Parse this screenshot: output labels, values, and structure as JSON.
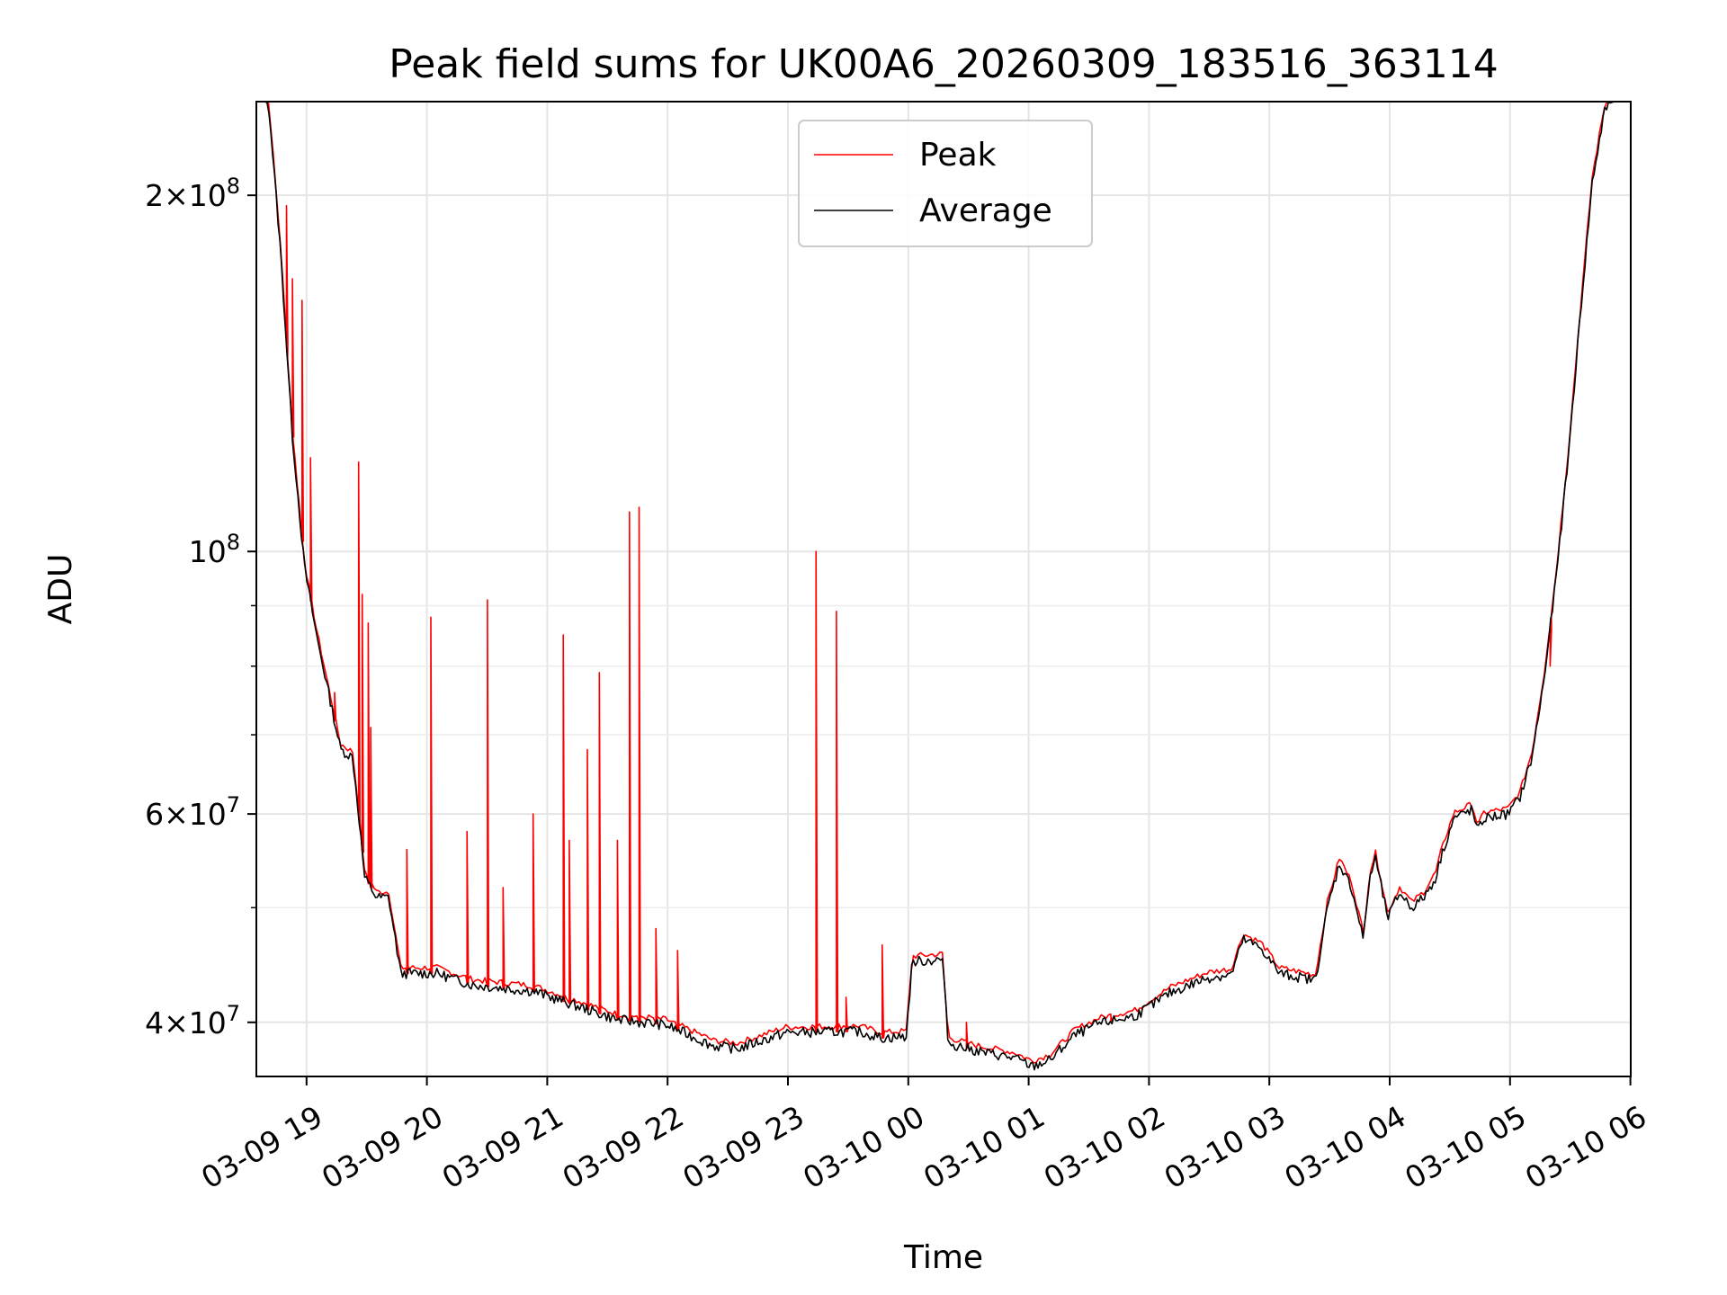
{
  "chart_data": {
    "type": "line",
    "title": "Peak field sums for UK00A6_20260309_183516_363114",
    "xlabel": "Time",
    "ylabel": "ADU",
    "y_scale": "log",
    "ylim": [
      36000000,
      240000000
    ],
    "xlim_hours_from_0309_1835": [
      0,
      11.42
    ],
    "x_ticks": [
      {
        "label": "03-09 19",
        "hour": 0.417
      },
      {
        "label": "03-09 20",
        "hour": 1.417
      },
      {
        "label": "03-09 21",
        "hour": 2.417
      },
      {
        "label": "03-09 22",
        "hour": 3.417
      },
      {
        "label": "03-09 23",
        "hour": 4.417
      },
      {
        "label": "03-10 00",
        "hour": 5.417
      },
      {
        "label": "03-10 01",
        "hour": 6.417
      },
      {
        "label": "03-10 02",
        "hour": 7.417
      },
      {
        "label": "03-10 03",
        "hour": 8.417
      },
      {
        "label": "03-10 04",
        "hour": 9.417
      },
      {
        "label": "03-10 05",
        "hour": 10.417
      },
      {
        "label": "03-10 06",
        "hour": 11.417
      }
    ],
    "y_ticks": [
      {
        "base": "4",
        "exp": "7",
        "value": 40000000
      },
      {
        "base": "6",
        "exp": "7",
        "value": 60000000
      },
      {
        "base": "10",
        "exp": "8",
        "value": 100000000,
        "plain": true
      },
      {
        "base": "2",
        "exp": "8",
        "value": 200000000
      }
    ],
    "y_minor_ticks": [
      50000000,
      70000000,
      80000000,
      90000000
    ],
    "grid": true,
    "legend": {
      "placement": "top-center",
      "entries": [
        "Peak",
        "Average"
      ]
    },
    "series": [
      {
        "name": "Average",
        "color": "#000000",
        "points": [
          [
            0.0,
            245000000
          ],
          [
            0.1,
            240000000
          ],
          [
            0.2,
            180000000
          ],
          [
            0.3,
            125000000
          ],
          [
            0.4,
            97000000
          ],
          [
            0.5,
            85000000
          ],
          [
            0.6,
            76000000
          ],
          [
            0.7,
            68000000
          ],
          [
            0.8,
            67000000
          ],
          [
            0.85,
            60000000
          ],
          [
            0.9,
            53000000
          ],
          [
            1.0,
            51000000
          ],
          [
            1.1,
            51000000
          ],
          [
            1.2,
            44000000
          ],
          [
            1.5,
            44000000
          ],
          [
            1.8,
            43000000
          ],
          [
            2.0,
            42800000
          ],
          [
            2.3,
            42500000
          ],
          [
            2.6,
            41500000
          ],
          [
            3.0,
            40200000
          ],
          [
            3.4,
            39800000
          ],
          [
            3.6,
            39000000
          ],
          [
            3.8,
            38200000
          ],
          [
            4.0,
            38000000
          ],
          [
            4.4,
            39200000
          ],
          [
            5.0,
            39300000
          ],
          [
            5.2,
            38800000
          ],
          [
            5.4,
            38900000
          ],
          [
            5.45,
            45000000
          ],
          [
            5.7,
            45200000
          ],
          [
            5.75,
            38400000
          ],
          [
            6.0,
            37800000
          ],
          [
            6.3,
            37300000
          ],
          [
            6.45,
            36700000
          ],
          [
            6.6,
            37200000
          ],
          [
            6.8,
            39000000
          ],
          [
            7.0,
            39900000
          ],
          [
            7.3,
            40500000
          ],
          [
            7.6,
            42400000
          ],
          [
            7.9,
            43600000
          ],
          [
            8.1,
            43900000
          ],
          [
            8.2,
            47000000
          ],
          [
            8.35,
            46200000
          ],
          [
            8.5,
            44000000
          ],
          [
            8.65,
            43700000
          ],
          [
            8.8,
            43400000
          ],
          [
            8.9,
            50000000
          ],
          [
            9.0,
            54500000
          ],
          [
            9.1,
            52000000
          ],
          [
            9.2,
            47000000
          ],
          [
            9.25,
            53000000
          ],
          [
            9.3,
            55000000
          ],
          [
            9.4,
            49000000
          ],
          [
            9.5,
            51500000
          ],
          [
            9.6,
            50000000
          ],
          [
            9.7,
            51000000
          ],
          [
            9.8,
            53000000
          ],
          [
            9.85,
            55500000
          ],
          [
            9.95,
            59500000
          ],
          [
            10.1,
            60500000
          ],
          [
            10.15,
            58000000
          ],
          [
            10.2,
            59500000
          ],
          [
            10.4,
            60000000
          ],
          [
            10.5,
            62000000
          ],
          [
            10.6,
            67000000
          ],
          [
            10.7,
            78000000
          ],
          [
            10.8,
            95000000
          ],
          [
            10.9,
            120000000
          ],
          [
            11.0,
            158000000
          ],
          [
            11.1,
            205000000
          ],
          [
            11.2,
            235000000
          ],
          [
            11.3,
            245000000
          ],
          [
            11.42,
            245000000
          ]
        ]
      },
      {
        "name": "Peak",
        "color": "#ff0000",
        "spikes": [
          [
            0.25,
            196000000
          ],
          [
            0.3,
            170000000
          ],
          [
            0.38,
            163000000
          ],
          [
            0.45,
            120000000
          ],
          [
            0.65,
            76000000
          ],
          [
            0.85,
            119000000
          ],
          [
            0.88,
            92000000
          ],
          [
            0.93,
            87000000
          ],
          [
            0.95,
            71000000
          ],
          [
            1.25,
            56000000
          ],
          [
            1.45,
            88000000
          ],
          [
            1.75,
            58000000
          ],
          [
            1.92,
            91000000
          ],
          [
            2.05,
            52000000
          ],
          [
            2.3,
            60000000
          ],
          [
            2.55,
            85000000
          ],
          [
            2.6,
            57000000
          ],
          [
            2.75,
            68000000
          ],
          [
            2.85,
            79000000
          ],
          [
            3.0,
            57000000
          ],
          [
            3.1,
            108000000
          ],
          [
            3.18,
            109000000
          ],
          [
            3.32,
            48000000
          ],
          [
            3.5,
            46000000
          ],
          [
            4.65,
            100000000
          ],
          [
            4.82,
            89000000
          ],
          [
            4.9,
            42000000
          ],
          [
            5.2,
            46500000
          ],
          [
            5.9,
            40000000
          ],
          [
            7.1,
            40500000
          ],
          [
            10.75,
            80000000
          ]
        ]
      }
    ]
  }
}
